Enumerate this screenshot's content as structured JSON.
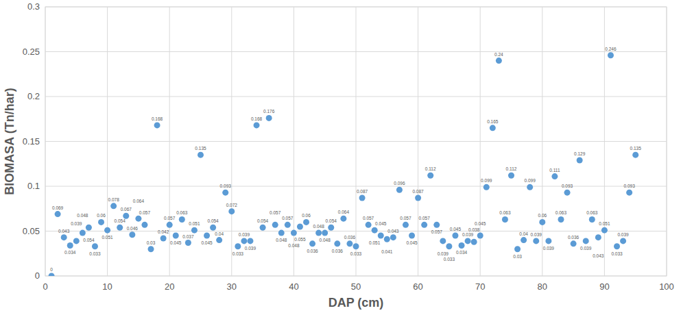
{
  "chart_data": {
    "type": "scatter",
    "x_label": "DAP (cm)",
    "y_label": "BIOMASA (Tn/har)",
    "x": [
      1,
      2,
      3,
      4,
      5,
      6,
      7,
      8,
      9,
      10,
      11,
      12,
      13,
      14,
      15,
      16,
      17,
      18,
      19,
      20,
      21,
      22,
      23,
      24,
      25,
      26,
      27,
      28,
      29,
      30,
      31,
      32,
      33,
      34,
      35,
      36,
      37,
      38,
      39,
      40,
      41,
      42,
      43,
      44,
      45,
      46,
      47,
      48,
      49,
      50,
      51,
      52,
      53,
      54,
      55,
      56,
      57,
      58,
      59,
      60,
      61,
      62,
      63,
      64,
      65,
      66,
      67,
      68,
      69,
      70,
      71,
      72,
      73,
      74,
      75,
      76,
      77,
      78,
      79,
      80,
      81,
      82,
      83,
      84,
      85,
      86,
      87,
      88,
      89,
      90,
      91,
      92,
      93,
      94,
      95
    ],
    "values": [
      0,
      0.069,
      0.043,
      0.034,
      0.039,
      0.048,
      0.054,
      0.033,
      0.06,
      0.051,
      0.078,
      0.054,
      0.067,
      0.046,
      0.064,
      0.057,
      0.03,
      0.168,
      0.042,
      0.057,
      0.045,
      0.063,
      0.037,
      0.051,
      0.135,
      0.045,
      0.054,
      0.04,
      0.093,
      0.072,
      0.033,
      0.039,
      0.039,
      0.168,
      0.054,
      0.176,
      0.057,
      0.048,
      0.057,
      0.048,
      0.055,
      0.06,
      0.036,
      0.048,
      0.048,
      0.054,
      0.036,
      0.064,
      0.036,
      0.033,
      0.087,
      0.057,
      0.051,
      0.045,
      0.041,
      0.043,
      0.096,
      0.057,
      0.045,
      0.087,
      0.057,
      0.112,
      0.057,
      0.039,
      0.033,
      0.045,
      0.034,
      0.039,
      0.038,
      0.045,
      0.099,
      0.165,
      0.24,
      0.063,
      0.112,
      0.03,
      0.04,
      0.099,
      0.039,
      0.06,
      0.039,
      0.111,
      0.063,
      0.093,
      0.036,
      0.129,
      0.039,
      0.063,
      0.043,
      0.051,
      0.246,
      0.033,
      0.039,
      0.093,
      0.135
    ],
    "color": "#5b9bd5",
    "marker": "circle",
    "xlim": [
      0,
      100
    ],
    "xticks": [
      0,
      10,
      20,
      30,
      40,
      50,
      60,
      70,
      80,
      90,
      100
    ],
    "ylim": [
      0,
      0.3
    ],
    "yticks": [
      0,
      0.05,
      0.1,
      0.15,
      0.2,
      0.25,
      0.3
    ],
    "grid": true,
    "data_labels": true
  }
}
